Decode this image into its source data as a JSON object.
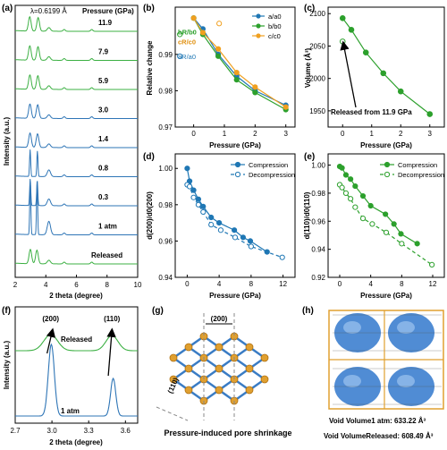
{
  "chart_data": [
    {
      "id": "a",
      "panel_label": "(a)",
      "type": "line",
      "title": "",
      "wavelength_label": "λ=0.6199 Å",
      "legend_title": "Pressure (GPa)",
      "xlabel": "2 theta (degree)",
      "ylabel": "Intensity (a.u.)",
      "xlim": [
        2,
        10
      ],
      "xticks": [
        "2",
        "4",
        "6",
        "8",
        "10"
      ],
      "series": [
        {
          "name": "11.9",
          "color": "#3cb043"
        },
        {
          "name": "7.9",
          "color": "#3cb043"
        },
        {
          "name": "5.9",
          "color": "#3cb043"
        },
        {
          "name": "3.0",
          "color": "#2e75b6"
        },
        {
          "name": "1.4",
          "color": "#2e75b6"
        },
        {
          "name": "0.8",
          "color": "#2e75b6"
        },
        {
          "name": "0.3",
          "color": "#2e75b6"
        },
        {
          "name": "1 atm",
          "color": "#2e75b6"
        },
        {
          "name": "Released",
          "color": "#3cb043"
        }
      ]
    },
    {
      "id": "b",
      "panel_label": "(b)",
      "type": "line",
      "title": "",
      "xlabel": "Pressure (GPa)",
      "ylabel": "Relative change",
      "xlim": [
        -0.6,
        3.3
      ],
      "ylim": [
        0.97,
        1.003
      ],
      "xticks": [
        "0",
        "1",
        "2",
        "3"
      ],
      "yticks": [
        "0.97",
        "0.98",
        "0.99"
      ],
      "series": [
        {
          "name": "a/a0",
          "color": "#1f77b4",
          "x": [
            0,
            0.3,
            0.8,
            1.4,
            2.0,
            3.0
          ],
          "y": [
            1.0,
            0.997,
            0.99,
            0.984,
            0.98,
            0.976
          ],
          "released": 0.9895
        },
        {
          "name": "b/b0",
          "color": "#2ca02c",
          "x": [
            0,
            0.3,
            0.8,
            1.4,
            2.0,
            3.0
          ],
          "y": [
            1.0,
            0.9955,
            0.9895,
            0.983,
            0.9795,
            0.9748
          ],
          "released": 0.9955
        },
        {
          "name": "c/c0",
          "color": "#f0a020",
          "x": [
            0,
            0.3,
            0.8,
            1.4,
            2.0,
            3.0
          ],
          "y": [
            1.0,
            0.996,
            0.9915,
            0.985,
            0.981,
            0.9755
          ],
          "released": 0.9985
        }
      ],
      "labels": {
        "bR": "bR/b0",
        "cR": "cR/c0",
        "aR": "aR/a0"
      }
    },
    {
      "id": "c",
      "panel_label": "(c)",
      "type": "line",
      "title": "",
      "xlabel": "Pressure (GPa)",
      "ylabel": "Volume (Å³)",
      "xlim": [
        -0.5,
        3.5
      ],
      "ylim": [
        1925,
        2110
      ],
      "xticks": [
        "0",
        "1",
        "2",
        "3"
      ],
      "yticks": [
        "1950",
        "2000",
        "2050",
        "2100"
      ],
      "series": [
        {
          "name": "Volume",
          "color": "#2ca02c",
          "x": [
            0,
            0.3,
            0.8,
            1.4,
            2.0,
            3.0
          ],
          "y": [
            2093,
            2075,
            2040,
            2008,
            1980,
            1945
          ]
        }
      ],
      "released": {
        "x": 0,
        "y": 2057
      },
      "annotation": "Released from 11.9 GPa"
    },
    {
      "id": "d",
      "panel_label": "(d)",
      "type": "line",
      "title": "",
      "xlabel": "Pressure (GPa)",
      "ylabel": "d(200)/d0(200)",
      "xlim": [
        -1.5,
        13.5
      ],
      "ylim": [
        0.94,
        1.008
      ],
      "xticks": [
        "0",
        "4",
        "8",
        "12"
      ],
      "yticks": [
        "0.94",
        "0.96",
        "0.98",
        "1.00"
      ],
      "series": [
        {
          "name": "Compression",
          "color": "#1f77b4",
          "dashed": false,
          "filled": true,
          "x": [
            0,
            0.3,
            0.8,
            1.4,
            2.0,
            3.0,
            4.0,
            5.9,
            7.0,
            7.9,
            10.0
          ],
          "y": [
            1.0,
            0.993,
            0.988,
            0.983,
            0.979,
            0.973,
            0.97,
            0.966,
            0.962,
            0.96,
            0.954
          ]
        },
        {
          "name": "Decompression",
          "color": "#1f77b4",
          "dashed": true,
          "filled": false,
          "x": [
            0,
            0.3,
            0.8,
            1.4,
            2.0,
            3.0,
            4.2,
            6.0,
            8.0,
            11.9
          ],
          "y": [
            0.991,
            0.99,
            0.984,
            0.98,
            0.976,
            0.969,
            0.966,
            0.962,
            0.957,
            0.951
          ]
        }
      ]
    },
    {
      "id": "e",
      "panel_label": "(e)",
      "type": "line",
      "title": "",
      "xlabel": "Pressure (GPa)",
      "ylabel": "d(110)/d0(110)",
      "xlim": [
        -1.5,
        13.5
      ],
      "ylim": [
        0.92,
        1.008
      ],
      "xticks": [
        "0",
        "4",
        "8",
        "12"
      ],
      "yticks": [
        "0.92",
        "0.94",
        "0.96",
        "0.98",
        "1.00"
      ],
      "series": [
        {
          "name": "Compression",
          "color": "#2ca02c",
          "dashed": false,
          "filled": true,
          "x": [
            0,
            0.3,
            0.8,
            1.4,
            2.0,
            3.0,
            4.0,
            5.9,
            7.0,
            7.9,
            10.0
          ],
          "y": [
            0.999,
            0.998,
            0.993,
            0.99,
            0.985,
            0.978,
            0.971,
            0.965,
            0.958,
            0.951,
            0.944
          ]
        },
        {
          "name": "Decompression",
          "color": "#2ca02c",
          "dashed": true,
          "filled": false,
          "x": [
            0,
            0.3,
            0.8,
            1.4,
            2.0,
            3.0,
            4.2,
            6.0,
            8.0,
            11.9
          ],
          "y": [
            0.986,
            0.984,
            0.98,
            0.976,
            0.97,
            0.962,
            0.958,
            0.952,
            0.944,
            0.929
          ]
        }
      ]
    },
    {
      "id": "f",
      "panel_label": "(f)",
      "type": "line",
      "title": "",
      "xlabel": "2 theta (degree)",
      "ylabel": "Intensity (a.u.)",
      "xlim": [
        2.7,
        3.7
      ],
      "xticks": [
        "2.7",
        "3.0",
        "3.3",
        "3.6"
      ],
      "peaks": [
        "(200)",
        "(110)"
      ],
      "series": [
        {
          "name": "Released",
          "color": "#3cb043"
        },
        {
          "name": "1 atm",
          "color": "#2e75b6"
        }
      ]
    }
  ],
  "figure_g": {
    "panel_label": "(g)",
    "label_200": "(200)",
    "label_110": "(110)",
    "caption": "Pressure-induced pore shrinkage"
  },
  "figure_h": {
    "panel_label": "(h)",
    "void_1atm": "Void Volume1 atm: 633.22 Å³",
    "void_released": "Void VolumeReleased: 608.49 Å³"
  }
}
